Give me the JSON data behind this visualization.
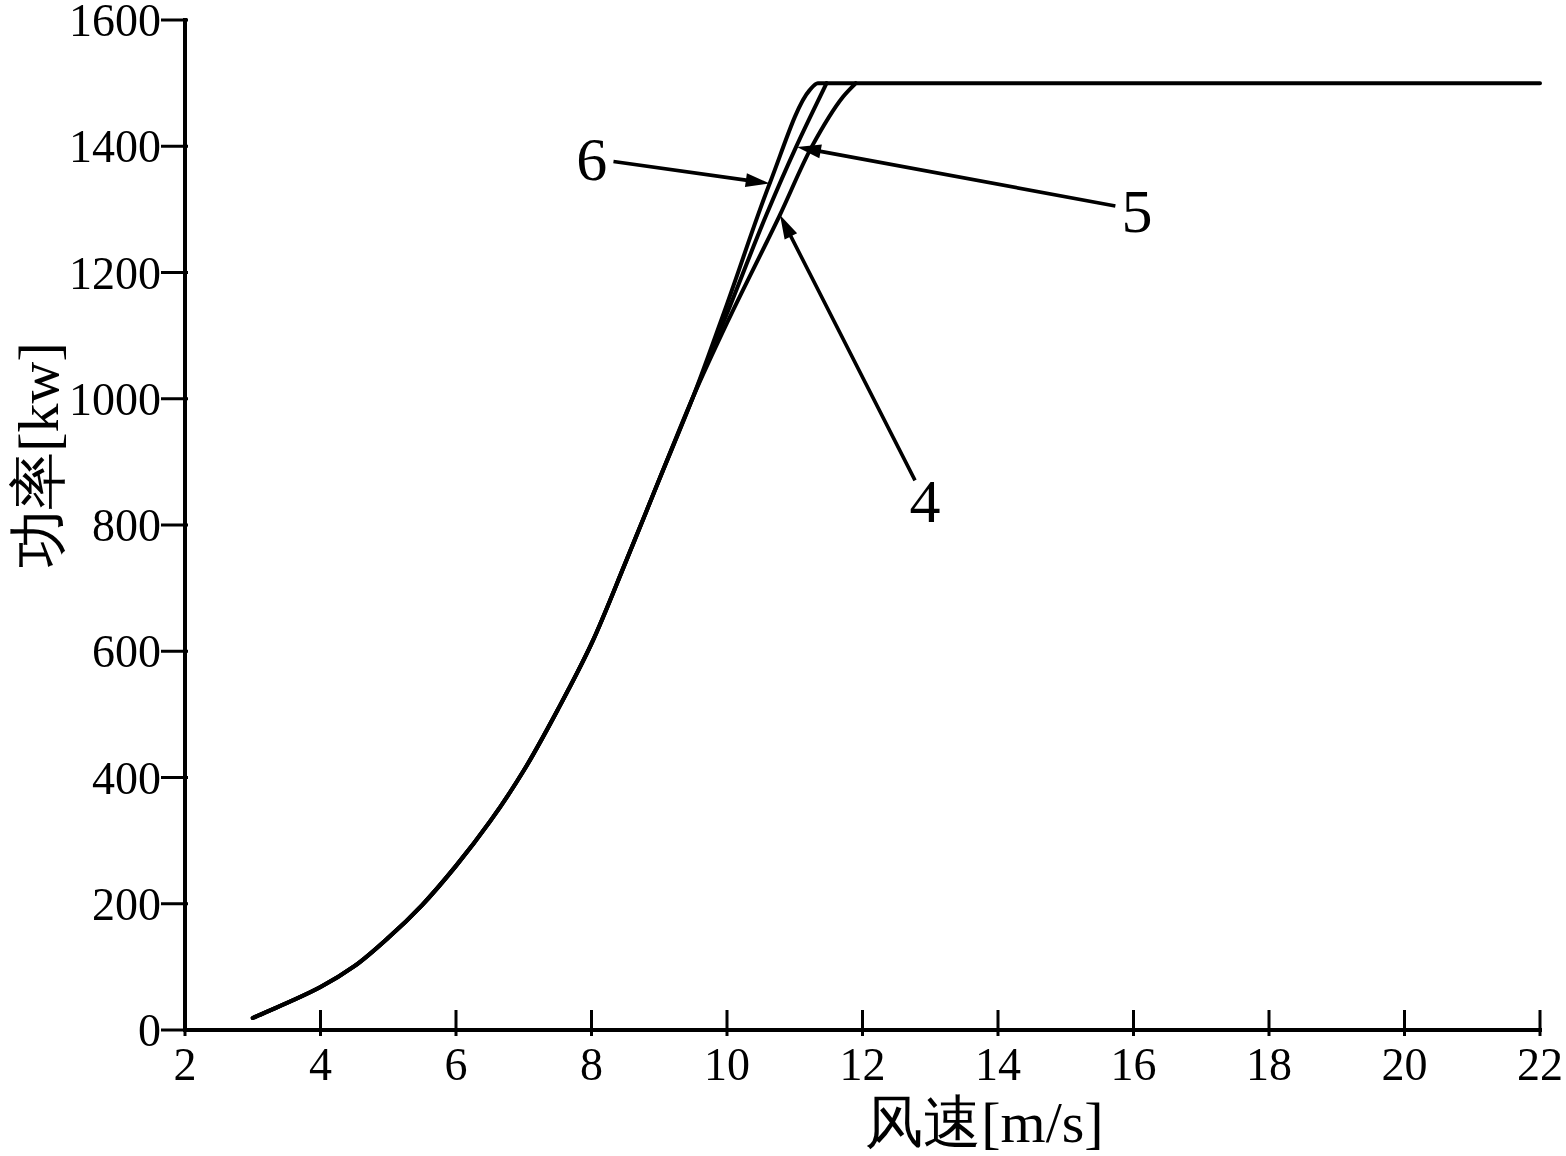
{
  "chart_data": {
    "type": "line",
    "xlabel": "风速[m/s]",
    "ylabel": "功率[kw]",
    "xlim": [
      2,
      22
    ],
    "ylim": [
      0,
      1600
    ],
    "xticks": [
      2,
      4,
      6,
      8,
      10,
      12,
      14,
      16,
      18,
      20,
      22
    ],
    "yticks": [
      0,
      200,
      400,
      600,
      800,
      1000,
      1200,
      1400,
      1600
    ],
    "line_style": "solid",
    "series": [
      {
        "color": "#000000",
        "x": [
          3,
          4,
          4.5,
          5,
          5.5,
          6,
          6.5,
          7,
          7.5,
          8,
          8.5,
          9,
          9.5,
          10,
          10.78,
          11.25,
          11.71,
          11.9
        ],
        "values": [
          19,
          68,
          101,
          146,
          198,
          260,
          330,
          411,
          507,
          612,
          740,
          872,
          1003,
          1120,
          1291,
          1399,
          1478,
          1500
        ]
      },
      {
        "color": "#000000",
        "x": [
          3,
          4,
          4.5,
          5,
          5.5,
          6,
          6.5,
          7,
          7.5,
          8,
          8.5,
          9,
          9.5,
          10,
          10.58,
          11.02,
          11.47
        ],
        "values": [
          19,
          68,
          101,
          146,
          198,
          260,
          330,
          411,
          507,
          612,
          740,
          872,
          1003,
          1135,
          1291,
          1399,
          1500
        ]
      },
      {
        "color": "#000000",
        "x": [
          3,
          4,
          4.5,
          5,
          5.5,
          6,
          6.5,
          7,
          7.5,
          8,
          8.5,
          9,
          9.5,
          10,
          10.63,
          11.22,
          11.34,
          22
        ],
        "values": [
          19,
          68,
          101,
          146,
          198,
          260,
          330,
          411,
          507,
          612,
          740,
          872,
          1003,
          1150,
          1341,
          1489,
          1500,
          1500
        ]
      }
    ],
    "annotations": [
      {
        "text": "6",
        "x": 10.63,
        "y": 1341
      },
      "5",
      "4"
    ]
  }
}
